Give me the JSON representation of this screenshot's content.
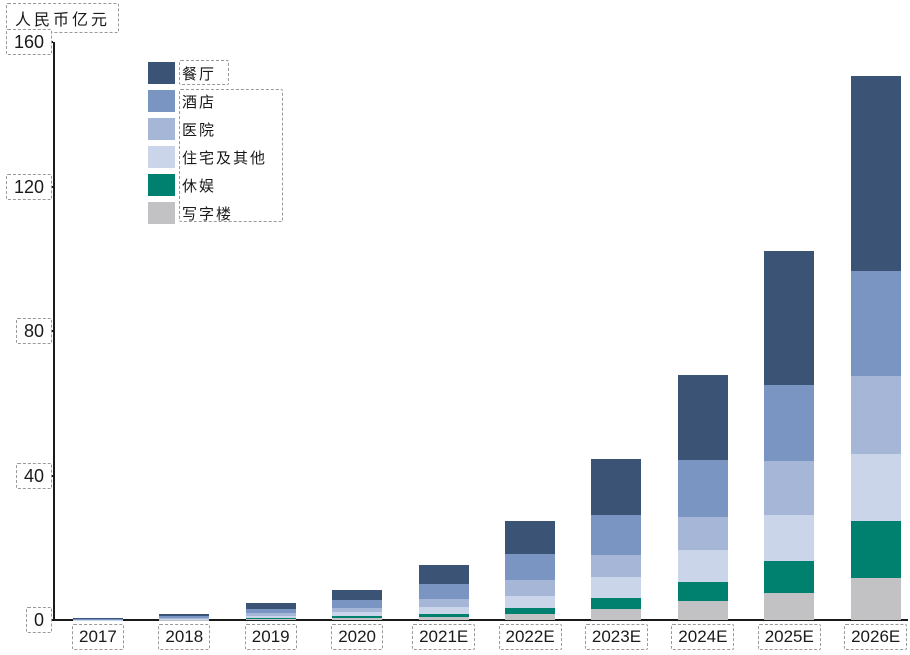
{
  "chart_data": {
    "type": "bar",
    "variant": "stacked-vertical",
    "title": "",
    "unit_label": "人民币亿元",
    "xlabel": "",
    "ylabel": "人民币亿元",
    "ylim": [
      0,
      160
    ],
    "y_ticks": [
      0,
      40,
      80,
      120,
      160
    ],
    "grid": false,
    "legend_position": "upper-left-inside",
    "categories": [
      "2017",
      "2018",
      "2019",
      "2020",
      "2021E",
      "2022E",
      "2023E",
      "2024E",
      "2025E",
      "2026E"
    ],
    "series": [
      {
        "name": "餐厅",
        "color": "#3b5375",
        "values": [
          0.25,
          0.5,
          1.7,
          2.9,
          5.4,
          9.1,
          15.5,
          23.3,
          37.0,
          54.0
        ]
      },
      {
        "name": "酒店",
        "color": "#7b95c2",
        "values": [
          0.15,
          0.45,
          1.2,
          2.1,
          4.0,
          7.0,
          11.0,
          15.8,
          21.0,
          29.0
        ]
      },
      {
        "name": "医院",
        "color": "#a6b6d7",
        "values": [
          0.08,
          0.25,
          0.7,
          1.1,
          2.3,
          4.6,
          6.0,
          9.1,
          15.0,
          21.5
        ]
      },
      {
        "name": "住宅及其他",
        "color": "#cbd5e9",
        "values": [
          0.06,
          0.2,
          0.6,
          1.2,
          2.0,
          3.3,
          6.0,
          8.9,
          12.7,
          18.5
        ]
      },
      {
        "name": "休娱",
        "color": "#00806e",
        "values": [
          0.03,
          0.1,
          0.3,
          0.6,
          0.9,
          1.6,
          3.0,
          5.3,
          8.9,
          16.0
        ]
      },
      {
        "name": "写字楼",
        "color": "#c2c2c4",
        "values": [
          0.03,
          0.1,
          0.3,
          0.5,
          0.7,
          1.7,
          3.0,
          5.3,
          7.5,
          11.5
        ]
      }
    ],
    "totals": [
      0.6,
      1.6,
      4.8,
      8.4,
      15.3,
      27.3,
      44.5,
      67.7,
      102.1,
      150.5
    ],
    "axis_color": "#1a1a1a",
    "annotation_box_color": "#999999"
  }
}
